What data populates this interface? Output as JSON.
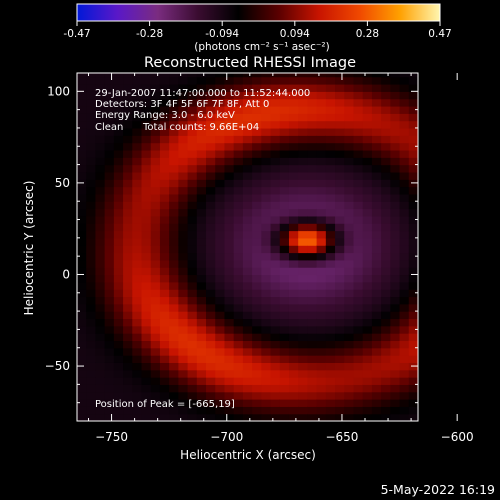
{
  "chart_data": {
    "type": "heatmap",
    "title": "Reconstructed RHESSI Image",
    "xlabel": "Heliocentric X (arcsec)",
    "ylabel": "Heliocentric Y (arcsec)",
    "xlim": [
      -765,
      -617
    ],
    "ylim": [
      -80,
      110
    ],
    "x_ticks": [
      -750,
      -700,
      -650,
      -600
    ],
    "y_ticks": [
      -50,
      0,
      50,
      100
    ],
    "colorbar": {
      "min": -0.47,
      "max": 0.47,
      "ticks": [
        "-0.47",
        "-0.28",
        "-0.094",
        "0.094",
        "0.28",
        "0.47"
      ],
      "units_label": "(photons cm⁻² s⁻¹ asec⁻²)",
      "colors": [
        "#0018d8",
        "#5a18c8",
        "#7a2c80",
        "#3a0c30",
        "#000000",
        "#5a0000",
        "#c81400",
        "#f04800",
        "#ffa000",
        "#fff6b0"
      ]
    },
    "annotations": {
      "time": "29-Jan-2007 11:47:00.000 to 11:52:44.000",
      "detectors": "Detectors: 3F 4F 5F 6F 7F 8F, Att 0",
      "energy": "Energy Range: 3.0 - 6.0 keV",
      "clean": "Clean",
      "counts": "Total counts: 9.66E+04",
      "peak": "Position of Peak = [-665,19]"
    },
    "peak": {
      "x": -665,
      "y": 19,
      "value": 0.47
    },
    "field": {
      "background_value": -0.09,
      "inner_dip": {
        "x": -665,
        "y": 16,
        "amplitude": -0.19,
        "sigma": 24
      },
      "ring": {
        "x": -665,
        "y": 16,
        "radius": 74,
        "width": 13,
        "amplitude": 0.3
      },
      "hotspot": {
        "x": -665,
        "y": 19,
        "amplitude": 0.58,
        "sigma": 8.5
      }
    }
  },
  "footer": {
    "date": "5-May-2022 16:19"
  }
}
